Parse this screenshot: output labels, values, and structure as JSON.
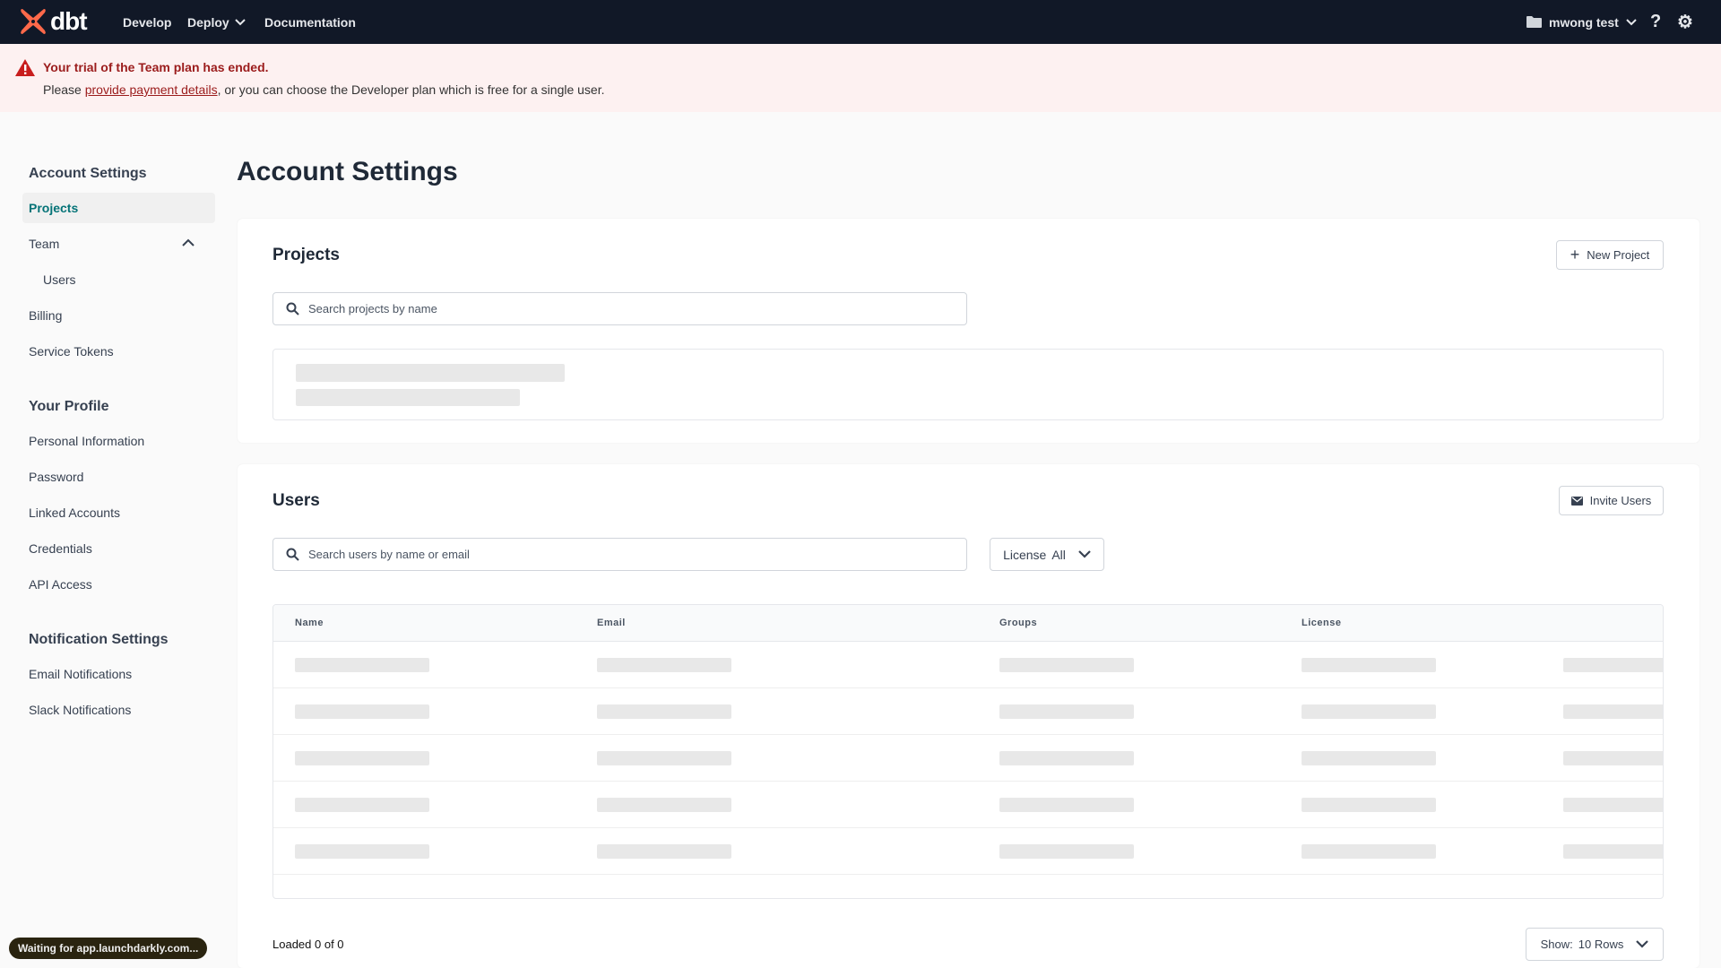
{
  "topbar": {
    "logo_text": "dbt",
    "nav": [
      {
        "label": "Develop"
      },
      {
        "label": "Deploy"
      },
      {
        "label": "Documentation"
      }
    ],
    "project": "mwong test"
  },
  "banner": {
    "title": "Your trial of the Team plan has ended.",
    "prefix": "Please ",
    "link": "provide payment details",
    "suffix": ", or you can choose the Developer plan which is free for a single user."
  },
  "sidebar": {
    "account_heading": "Account Settings",
    "account_items": [
      "Projects",
      "Team",
      "Users",
      "Billing",
      "Service Tokens"
    ],
    "profile_heading": "Your Profile",
    "profile_items": [
      "Personal Information",
      "Password",
      "Linked Accounts",
      "Credentials",
      "API Access"
    ],
    "notif_heading": "Notification Settings",
    "notif_items": [
      "Email Notifications",
      "Slack Notifications"
    ]
  },
  "page": {
    "title": "Account Settings"
  },
  "projects": {
    "title": "Projects",
    "new_button": "New Project",
    "search_placeholder": "Search projects by name"
  },
  "users": {
    "title": "Users",
    "invite_button": "Invite Users",
    "search_placeholder": "Search users by name or email",
    "license_label": "License",
    "license_value": "All",
    "columns": [
      "Name",
      "Email",
      "Groups",
      "License"
    ],
    "loaded": "Loaded 0 of 0",
    "show_label": "Show:",
    "show_value": "10 Rows"
  },
  "status": {
    "text": "Waiting for app.launchdarkly.com..."
  },
  "colors": {
    "topbar": "#111827",
    "accent": "#047377",
    "error": "#9b1c1c",
    "logo": "#ff694a"
  }
}
